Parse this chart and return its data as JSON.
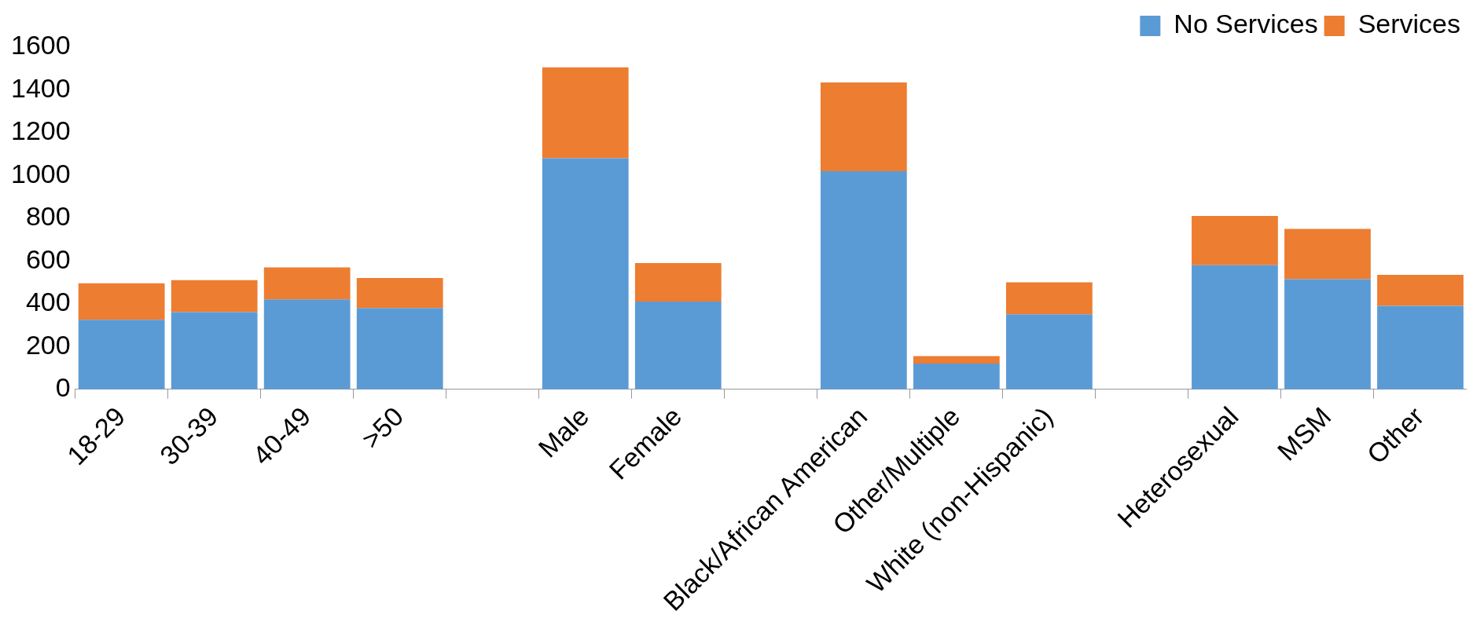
{
  "chart_data": {
    "type": "bar",
    "stacked": true,
    "categories": [
      "18-29",
      "30-39",
      "40-49",
      ">50",
      null,
      "Male",
      "Female",
      null,
      "Black/African American",
      "Other/Multiple",
      "White (non-Hispanic)",
      null,
      "Heterosexual",
      "MSM",
      "Other"
    ],
    "series": [
      {
        "name": "No Services",
        "color": "#5b9bd5",
        "values": [
          325,
          360,
          420,
          380,
          null,
          1080,
          410,
          null,
          1020,
          120,
          350,
          null,
          580,
          515,
          390
        ]
      },
      {
        "name": "Services",
        "color": "#ed7d31",
        "values": [
          170,
          150,
          150,
          140,
          null,
          425,
          180,
          null,
          415,
          35,
          150,
          null,
          230,
          235,
          145
        ]
      }
    ],
    "ylim": [
      0,
      1600
    ],
    "yticks": [
      0,
      200,
      400,
      600,
      800,
      1000,
      1200,
      1400,
      1600
    ],
    "grid": false,
    "legend": "top right"
  }
}
